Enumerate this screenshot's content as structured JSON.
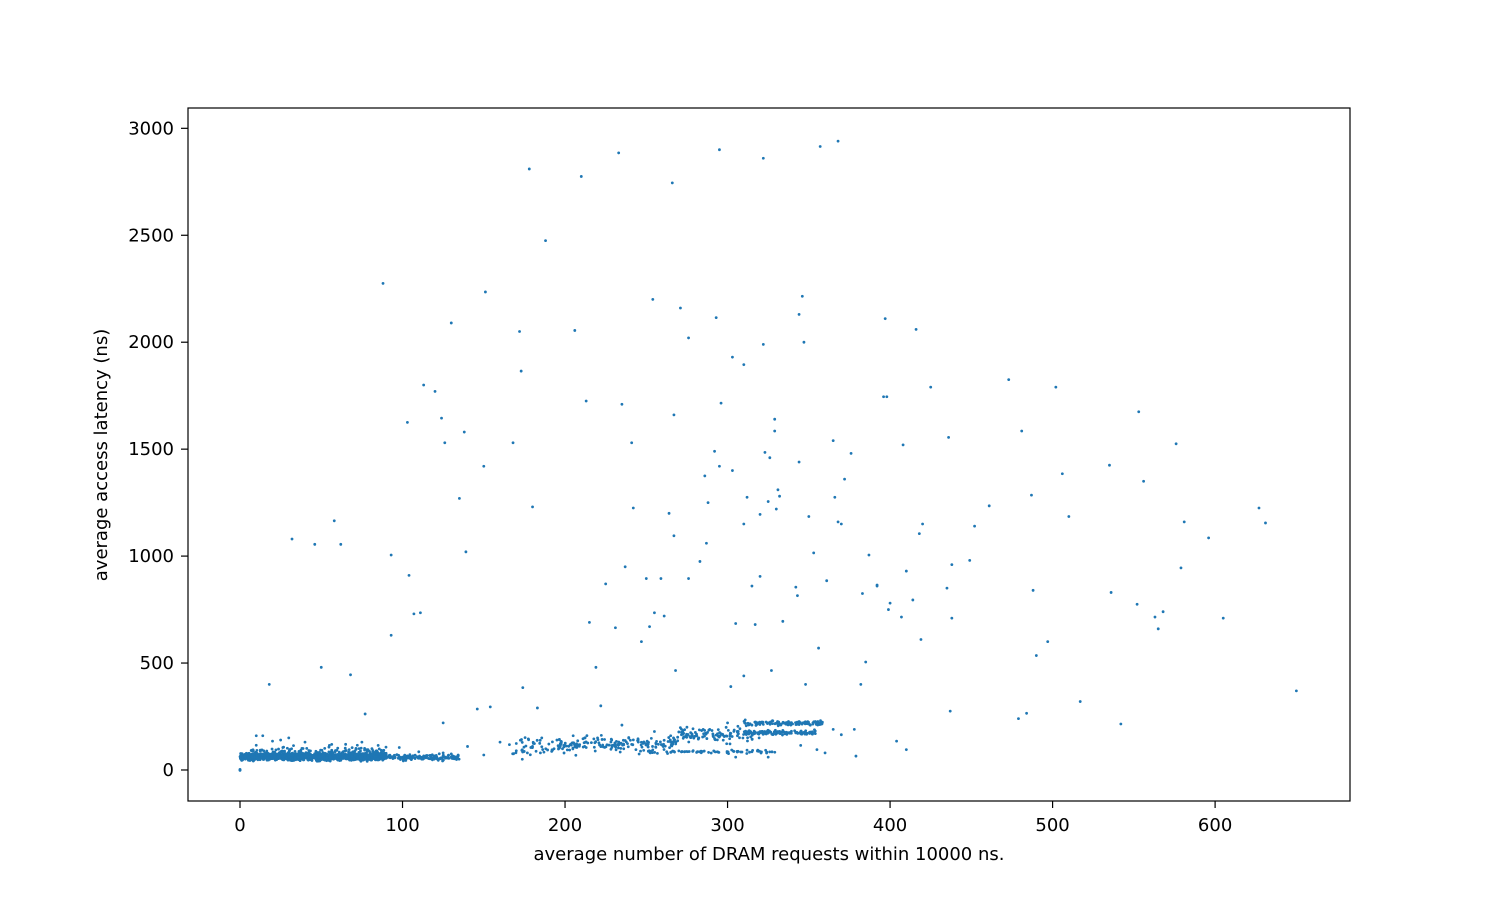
{
  "chart_data": {
    "type": "scatter",
    "title": "",
    "xlabel": "average number of DRAM requests within 10000 ns.",
    "ylabel": "average access latency (ns)",
    "xlim": [
      -32,
      683
    ],
    "ylim": [
      -145,
      3095
    ],
    "xticks": [
      0,
      100,
      200,
      300,
      400,
      500,
      600
    ],
    "yticks": [
      0,
      500,
      1000,
      1500,
      2000,
      2500,
      3000
    ],
    "grid": false,
    "legend": "none",
    "marker_color": "#1f77b4",
    "points": [
      [
        0,
        0
      ],
      [
        0,
        3
      ],
      [
        0,
        -2
      ],
      [
        32,
        1080
      ],
      [
        46,
        1055
      ],
      [
        58,
        1165
      ],
      [
        62,
        1055
      ],
      [
        18,
        400
      ],
      [
        50,
        480
      ],
      [
        68,
        445
      ],
      [
        77,
        262
      ],
      [
        88,
        2275
      ],
      [
        93,
        630
      ],
      [
        93,
        1005
      ],
      [
        103,
        1625
      ],
      [
        104,
        910
      ],
      [
        107,
        730
      ],
      [
        111,
        735
      ],
      [
        113,
        1800
      ],
      [
        120,
        1770
      ],
      [
        124,
        1645
      ],
      [
        125,
        220
      ],
      [
        126,
        1530
      ],
      [
        130,
        2090
      ],
      [
        135,
        1270
      ],
      [
        138,
        1580
      ],
      [
        139,
        1020
      ],
      [
        146,
        285
      ],
      [
        150,
        1420
      ],
      [
        151,
        2235
      ],
      [
        154,
        295
      ],
      [
        168,
        1530
      ],
      [
        172,
        2050
      ],
      [
        173,
        1865
      ],
      [
        174,
        385
      ],
      [
        178,
        2810
      ],
      [
        180,
        1230
      ],
      [
        183,
        290
      ],
      [
        188,
        2475
      ],
      [
        206,
        2055
      ],
      [
        210,
        2775
      ],
      [
        213,
        1725
      ],
      [
        215,
        690
      ],
      [
        219,
        480
      ],
      [
        222,
        300
      ],
      [
        225,
        870
      ],
      [
        231,
        665
      ],
      [
        233,
        2885
      ],
      [
        235,
        1710
      ],
      [
        237,
        950
      ],
      [
        241,
        1530
      ],
      [
        242,
        1225
      ],
      [
        247,
        600
      ],
      [
        250,
        895
      ],
      [
        252,
        670
      ],
      [
        254,
        2200
      ],
      [
        255,
        735
      ],
      [
        259,
        895
      ],
      [
        261,
        720
      ],
      [
        264,
        1200
      ],
      [
        266,
        2745
      ],
      [
        267,
        1660
      ],
      [
        267,
        1095
      ],
      [
        268,
        465
      ],
      [
        271,
        2160
      ],
      [
        276,
        2020
      ],
      [
        276,
        895
      ],
      [
        283,
        975
      ],
      [
        286,
        1375
      ],
      [
        287,
        1060
      ],
      [
        288,
        1250
      ],
      [
        292,
        1490
      ],
      [
        293,
        2115
      ],
      [
        295,
        1420
      ],
      [
        295,
        2900
      ],
      [
        296,
        1715
      ],
      [
        302,
        390
      ],
      [
        303,
        1930
      ],
      [
        303,
        1400
      ],
      [
        305,
        685
      ],
      [
        310,
        1895
      ],
      [
        310,
        440
      ],
      [
        310,
        1150
      ],
      [
        312,
        1275
      ],
      [
        315,
        860
      ],
      [
        317,
        680
      ],
      [
        320,
        1195
      ],
      [
        320,
        905
      ],
      [
        322,
        1990
      ],
      [
        322,
        2860
      ],
      [
        323,
        1485
      ],
      [
        325,
        1255
      ],
      [
        326,
        1460
      ],
      [
        327,
        465
      ],
      [
        329,
        1585
      ],
      [
        329,
        1640
      ],
      [
        330,
        1220
      ],
      [
        331,
        1310
      ],
      [
        332,
        1280
      ],
      [
        334,
        695
      ],
      [
        342,
        855
      ],
      [
        343,
        815
      ],
      [
        344,
        1440
      ],
      [
        344,
        2130
      ],
      [
        346,
        2215
      ],
      [
        347,
        2000
      ],
      [
        348,
        400
      ],
      [
        350,
        1185
      ],
      [
        353,
        1015
      ],
      [
        356,
        570
      ],
      [
        357,
        2915
      ],
      [
        361,
        885
      ],
      [
        365,
        1540
      ],
      [
        366,
        1275
      ],
      [
        368,
        2940
      ],
      [
        368,
        1160
      ],
      [
        370,
        1150
      ],
      [
        372,
        1360
      ],
      [
        376,
        1480
      ],
      [
        382,
        400
      ],
      [
        383,
        825
      ],
      [
        385,
        505
      ],
      [
        387,
        1005
      ],
      [
        392,
        865
      ],
      [
        392,
        860
      ],
      [
        396,
        1745
      ],
      [
        397,
        2110
      ],
      [
        398,
        1745
      ],
      [
        399,
        750
      ],
      [
        400,
        780
      ],
      [
        404,
        135
      ],
      [
        407,
        715
      ],
      [
        408,
        1520
      ],
      [
        410,
        930
      ],
      [
        414,
        795
      ],
      [
        416,
        2060
      ],
      [
        418,
        1105
      ],
      [
        419,
        610
      ],
      [
        420,
        1150
      ],
      [
        425,
        1790
      ],
      [
        435,
        850
      ],
      [
        436,
        1555
      ],
      [
        437,
        275
      ],
      [
        438,
        960
      ],
      [
        438,
        710
      ],
      [
        449,
        980
      ],
      [
        452,
        1140
      ],
      [
        461,
        1235
      ],
      [
        473,
        1825
      ],
      [
        479,
        240
      ],
      [
        481,
        1585
      ],
      [
        484,
        265
      ],
      [
        487,
        1285
      ],
      [
        488,
        840
      ],
      [
        490,
        535
      ],
      [
        497,
        600
      ],
      [
        502,
        1790
      ],
      [
        506,
        1385
      ],
      [
        510,
        1185
      ],
      [
        517,
        320
      ],
      [
        535,
        1425
      ],
      [
        536,
        830
      ],
      [
        542,
        215
      ],
      [
        552,
        775
      ],
      [
        553,
        1675
      ],
      [
        556,
        1350
      ],
      [
        563,
        715
      ],
      [
        565,
        660
      ],
      [
        568,
        740
      ],
      [
        576,
        1525
      ],
      [
        579,
        945
      ],
      [
        581,
        1160
      ],
      [
        596,
        1085
      ],
      [
        605,
        710
      ],
      [
        627,
        1225
      ],
      [
        631,
        1155
      ],
      [
        650,
        370
      ],
      [
        10,
        160
      ],
      [
        14,
        160
      ],
      [
        20,
        135
      ],
      [
        25,
        140
      ],
      [
        30,
        150
      ],
      [
        40,
        130
      ],
      [
        55,
        115
      ],
      [
        65,
        120
      ],
      [
        75,
        130
      ],
      [
        85,
        115
      ],
      [
        98,
        105
      ],
      [
        110,
        85
      ],
      [
        125,
        80
      ],
      [
        140,
        110
      ],
      [
        150,
        70
      ],
      [
        160,
        130
      ],
      [
        170,
        90
      ],
      [
        180,
        110
      ],
      [
        195,
        140
      ],
      [
        205,
        160
      ],
      [
        220,
        150
      ],
      [
        235,
        210
      ],
      [
        245,
        140
      ],
      [
        255,
        180
      ],
      [
        265,
        160
      ],
      [
        275,
        200
      ],
      [
        285,
        190
      ],
      [
        300,
        220
      ],
      [
        305,
        60
      ],
      [
        315,
        210
      ],
      [
        325,
        60
      ],
      [
        340,
        215
      ],
      [
        345,
        115
      ],
      [
        355,
        95
      ],
      [
        360,
        80
      ],
      [
        365,
        190
      ],
      [
        370,
        165
      ],
      [
        379,
        65
      ],
      [
        378,
        190
      ],
      [
        410,
        95
      ]
    ],
    "clusters": [
      {
        "x_range": [
          0,
          90
        ],
        "y_center": 62,
        "y_spread": 14,
        "count": 1400
      },
      {
        "x_range": [
          5,
          90
        ],
        "y_center": 72,
        "y_spread": 35,
        "count": 300
      },
      {
        "x_range": [
          90,
          135
        ],
        "y_center": 58,
        "y_spread": 12,
        "count": 160
      },
      {
        "x_range": [
          165,
          210
        ],
        "y_center": 110,
        "y_spread": 45,
        "count": 60
      },
      {
        "x_range": [
          195,
          270
        ],
        "y_center": 120,
        "y_spread": 30,
        "count": 160
      },
      {
        "x_range": [
          245,
          330
        ],
        "y_center": 85,
        "y_spread": 8,
        "count": 70
      },
      {
        "x_range": [
          270,
          320
        ],
        "y_center": 165,
        "y_spread": 35,
        "count": 110
      },
      {
        "x_range": [
          310,
          355
        ],
        "y_center": 175,
        "y_spread": 10,
        "count": 110
      },
      {
        "x_range": [
          310,
          360
        ],
        "y_center": 220,
        "y_spread": 12,
        "count": 110
      }
    ]
  }
}
